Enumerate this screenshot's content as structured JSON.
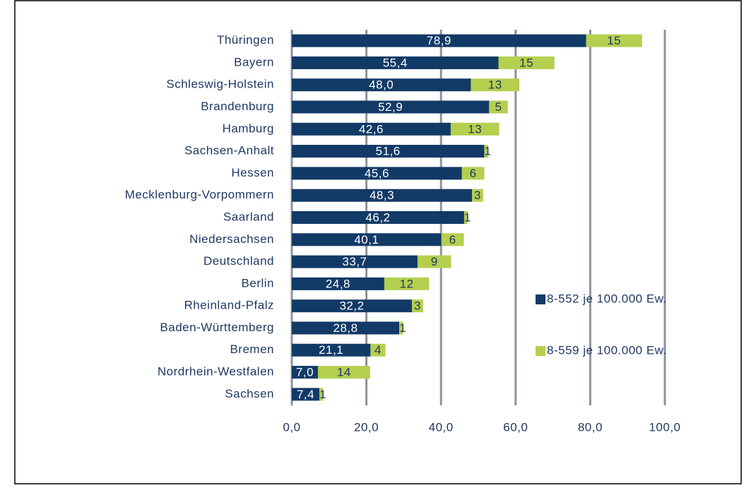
{
  "chart_data": {
    "type": "bar",
    "orientation": "horizontal",
    "stacked": true,
    "categories": [
      "Thüringen",
      "Bayern",
      "Schleswig-Holstein",
      "Brandenburg",
      "Hamburg",
      "Sachsen-Anhalt",
      "Hessen",
      "Mecklenburg-Vorpommern",
      "Saarland",
      "Niedersachsen",
      "Deutschland",
      "Berlin",
      "Rheinland-Pfalz",
      "Baden-Württemberg",
      "Bremen",
      "Nordrhein-Westfalen",
      "Sachsen"
    ],
    "series": [
      {
        "name": "8-552 je 100.000 Ew.",
        "color": "#123a66",
        "values": [
          78.9,
          55.4,
          48.0,
          52.9,
          42.6,
          51.6,
          45.6,
          48.3,
          46.2,
          40.1,
          33.7,
          24.8,
          32.2,
          28.8,
          21.1,
          7.0,
          7.4
        ],
        "value_labels": [
          "78,9",
          "55,4",
          "48,0",
          "52,9",
          "42,6",
          "51,6",
          "45,6",
          "48,3",
          "46,2",
          "40,1",
          "33,7",
          "24,8",
          "32,2",
          "28,8",
          "21,1",
          "7,0",
          "7,4"
        ]
      },
      {
        "name": "8-559 je 100.000 Ew.",
        "color": "#b5cf4f",
        "values": [
          15,
          15,
          13,
          5,
          13,
          1,
          6,
          3,
          1,
          6,
          9,
          12,
          3,
          1,
          4,
          14,
          1
        ]
      }
    ],
    "xlim": [
      0,
      100
    ],
    "xticks": [
      {
        "value": 0,
        "label": "0,0"
      },
      {
        "value": 20,
        "label": "20,0"
      },
      {
        "value": 40,
        "label": "40,0"
      },
      {
        "value": 60,
        "label": "60,0"
      },
      {
        "value": 80,
        "label": "80,0"
      },
      {
        "value": 100,
        "label": "100,0"
      }
    ],
    "grid": true,
    "legend": "right"
  }
}
